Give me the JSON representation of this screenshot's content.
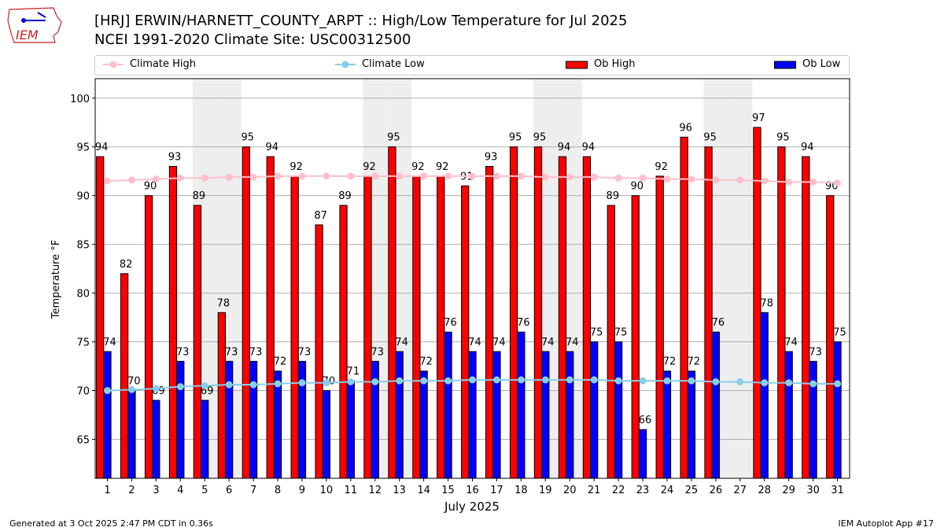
{
  "header": {
    "title_line1": "[HRJ] ERWIN/HARNETT_COUNTY_ARPT :: High/Low Temperature for Jul 2025",
    "title_line2": "NCEI 1991-2020 Climate Site: USC00312500",
    "logo_text": "IEM"
  },
  "footer": {
    "left": "Generated at 3 Oct 2025 2:47 PM CDT in 0.36s",
    "right": "IEM Autoplot App #17"
  },
  "colors": {
    "climate_high": "#ffc0cb",
    "climate_low": "#87ceeb",
    "ob_high": "#ff0000",
    "ob_low": "#0000ff",
    "weekend": "#eeeeee"
  },
  "chart_data": {
    "type": "bar",
    "xlabel": "July 2025",
    "ylabel": "Temperature °F",
    "xlim": [
      0.5,
      31.5
    ],
    "ylim": [
      61,
      102
    ],
    "yticks": [
      65,
      70,
      75,
      80,
      85,
      90,
      95,
      100
    ],
    "grid": true,
    "legend_placement": "top",
    "legend": [
      "Climate High",
      "Climate Low",
      "Ob High",
      "Ob Low"
    ],
    "weekend_days": [
      5,
      6,
      12,
      13,
      19,
      20,
      26,
      27
    ],
    "days": [
      1,
      2,
      3,
      4,
      5,
      6,
      7,
      8,
      9,
      10,
      11,
      12,
      13,
      14,
      15,
      16,
      17,
      18,
      19,
      20,
      21,
      22,
      23,
      24,
      25,
      26,
      27,
      28,
      29,
      30,
      31
    ],
    "series": [
      {
        "name": "Ob High",
        "values": [
          94,
          82,
          90,
          93,
          89,
          78,
          95,
          94,
          92,
          87,
          89,
          92,
          95,
          92,
          92,
          91,
          93,
          95,
          95,
          94,
          94,
          89,
          90,
          92,
          96,
          95,
          null,
          97,
          95,
          94,
          90
        ]
      },
      {
        "name": "Ob Low",
        "values": [
          74,
          70,
          69,
          73,
          69,
          73,
          73,
          72,
          73,
          70,
          71,
          73,
          74,
          72,
          76,
          74,
          74,
          76,
          74,
          74,
          75,
          75,
          66,
          72,
          72,
          76,
          null,
          78,
          74,
          73,
          75
        ]
      },
      {
        "name": "Climate High",
        "values": [
          91.5,
          91.6,
          91.7,
          91.8,
          91.8,
          91.9,
          91.9,
          92.0,
          92.0,
          92.0,
          92.0,
          92.0,
          92.0,
          92.0,
          92.0,
          92.0,
          92.0,
          92.0,
          91.9,
          91.9,
          91.9,
          91.8,
          91.8,
          91.7,
          91.7,
          91.6,
          91.6,
          91.5,
          91.4,
          91.4,
          91.3
        ]
      },
      {
        "name": "Climate Low",
        "values": [
          70.0,
          70.1,
          70.2,
          70.4,
          70.5,
          70.6,
          70.6,
          70.7,
          70.8,
          70.8,
          70.9,
          70.9,
          71.0,
          71.0,
          71.0,
          71.1,
          71.1,
          71.1,
          71.1,
          71.1,
          71.1,
          71.0,
          71.0,
          71.0,
          71.0,
          70.9,
          70.9,
          70.8,
          70.8,
          70.7,
          70.7
        ]
      }
    ]
  }
}
